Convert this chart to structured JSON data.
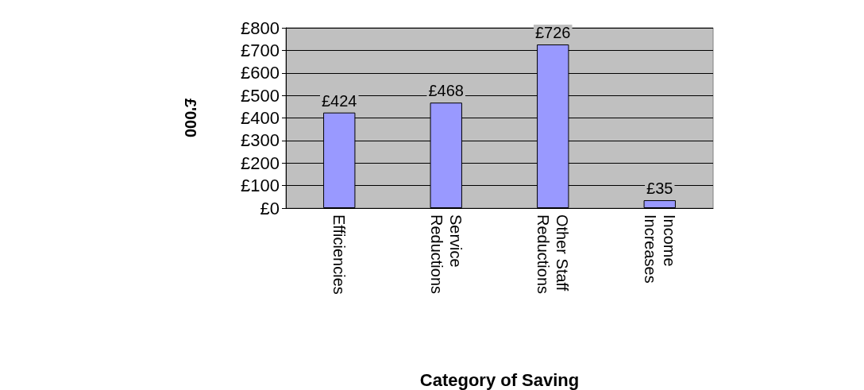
{
  "chart_data": {
    "type": "bar",
    "xlabel": "Category of Saving",
    "ylabel": "£'000",
    "categories": [
      "Efficiencies",
      "Service Reductions",
      "Other Staff Reductions",
      "Income Increases"
    ],
    "values": [
      424,
      468,
      726,
      35
    ],
    "color": "#9999ff",
    "value_labels": [
      "£424",
      "£468",
      "£726",
      "£35"
    ],
    "ylim": [
      0,
      800
    ],
    "yticks": [
      {
        "value": 0,
        "label": "£0"
      },
      {
        "value": 100,
        "label": "£100"
      },
      {
        "value": 200,
        "label": "£200"
      },
      {
        "value": 300,
        "label": "£300"
      },
      {
        "value": 400,
        "label": "£400"
      },
      {
        "value": 500,
        "label": "£500"
      },
      {
        "value": 600,
        "label": "£600"
      },
      {
        "value": 700,
        "label": "£700"
      },
      {
        "value": 800,
        "label": "£800"
      }
    ],
    "grid": "y"
  }
}
